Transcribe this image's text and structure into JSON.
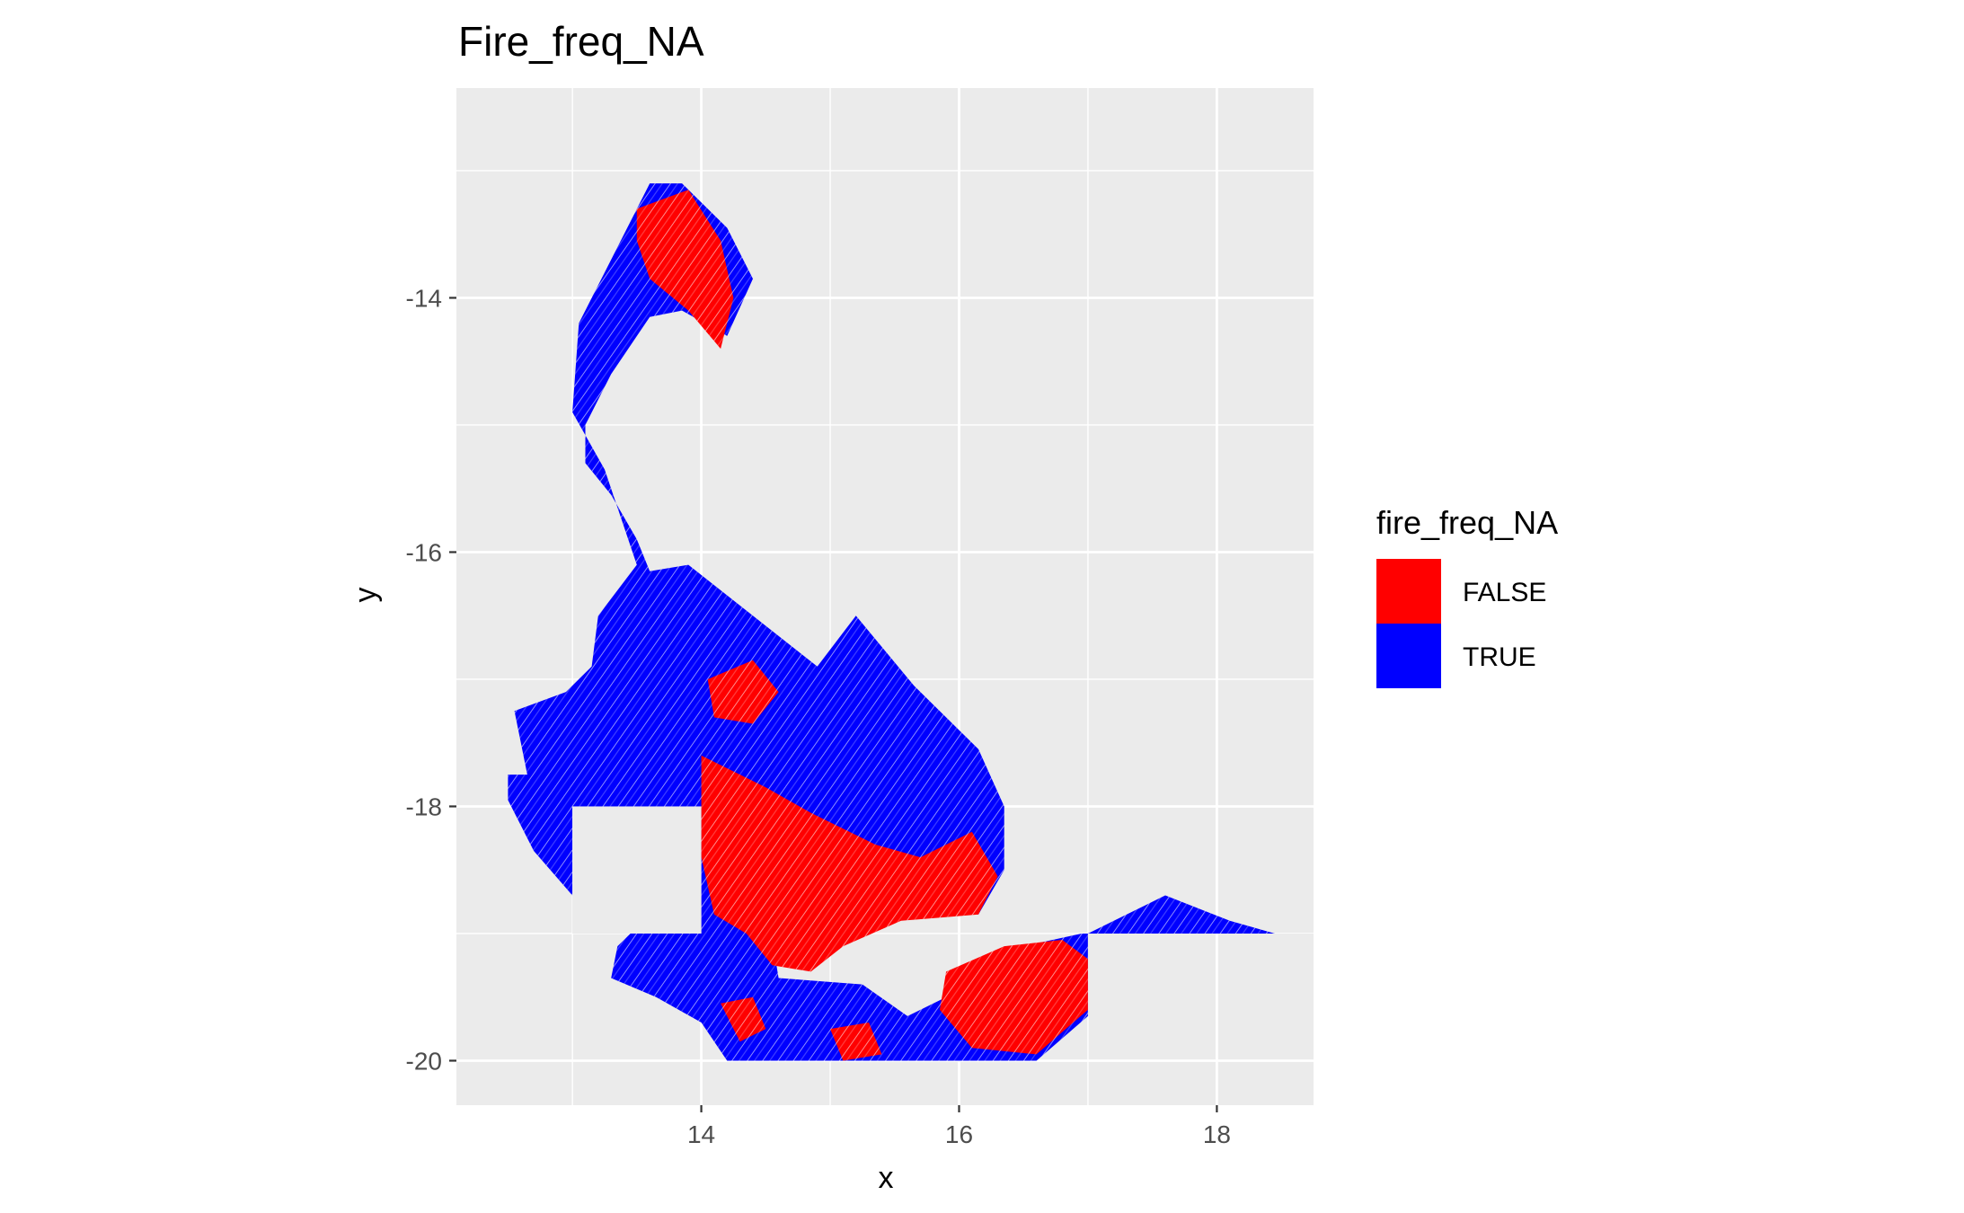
{
  "chart_data": {
    "type": "heatmap",
    "title": "Fire_freq_NA",
    "xlabel": "x",
    "ylabel": "y",
    "xlim": [
      12.1,
      18.75
    ],
    "ylim": [
      -20.35,
      -12.35
    ],
    "x_ticks": [
      14,
      16,
      18
    ],
    "y_ticks": [
      -14,
      -16,
      -18,
      -20
    ],
    "x_tick_labels": [
      "14",
      "16",
      "18"
    ],
    "y_tick_labels": [
      "-14",
      "-16",
      "-18",
      "-20"
    ],
    "grid": true,
    "legend": {
      "title": "fire_freq_NA",
      "position": "right",
      "entries": [
        {
          "label": "FALSE",
          "color": "#ff0000"
        },
        {
          "label": "TRUE",
          "color": "#0000ff"
        }
      ]
    },
    "colors": {
      "FALSE": "#ff0000",
      "TRUE": "#0000ff",
      "panel": "#ebebeb",
      "grid": "#ffffff"
    },
    "regions": [
      {
        "value": "TRUE",
        "polygon": [
          [
            13.6,
            -13.1
          ],
          [
            13.85,
            -13.1
          ],
          [
            14.2,
            -13.45
          ],
          [
            14.4,
            -13.85
          ],
          [
            14.2,
            -14.3
          ],
          [
            13.85,
            -14.1
          ],
          [
            13.6,
            -14.15
          ],
          [
            13.3,
            -14.6
          ],
          [
            13.1,
            -15.0
          ],
          [
            13.1,
            -15.3
          ],
          [
            13.3,
            -15.55
          ],
          [
            13.5,
            -15.9
          ],
          [
            13.6,
            -16.15
          ],
          [
            13.9,
            -16.1
          ],
          [
            14.4,
            -16.5
          ],
          [
            14.9,
            -16.9
          ],
          [
            15.2,
            -16.5
          ],
          [
            15.65,
            -17.05
          ],
          [
            16.15,
            -17.55
          ],
          [
            16.35,
            -18.0
          ],
          [
            16.35,
            -18.5
          ],
          [
            16.15,
            -18.85
          ],
          [
            15.5,
            -18.7
          ],
          [
            14.95,
            -18.7
          ],
          [
            14.55,
            -19.05
          ],
          [
            14.6,
            -19.35
          ],
          [
            15.25,
            -19.4
          ],
          [
            15.6,
            -19.65
          ],
          [
            16.0,
            -19.45
          ],
          [
            16.5,
            -19.1
          ],
          [
            16.95,
            -19.0
          ],
          [
            17.0,
            -19.0
          ],
          [
            17.6,
            -18.7
          ],
          [
            18.1,
            -18.9
          ],
          [
            18.45,
            -19.0
          ],
          [
            17.0,
            -19.0
          ],
          [
            17.0,
            -19.65
          ],
          [
            16.6,
            -20.0
          ],
          [
            14.2,
            -20.0
          ],
          [
            14.0,
            -19.7
          ],
          [
            13.65,
            -19.5
          ],
          [
            13.3,
            -19.35
          ],
          [
            13.35,
            -19.1
          ],
          [
            13.45,
            -19.0
          ],
          [
            14.0,
            -19.0
          ],
          [
            14.0,
            -18.0
          ],
          [
            13.0,
            -18.0
          ],
          [
            13.0,
            -18.7
          ],
          [
            12.7,
            -18.35
          ],
          [
            12.5,
            -17.95
          ],
          [
            12.5,
            -17.75
          ],
          [
            12.65,
            -17.75
          ],
          [
            12.55,
            -17.25
          ],
          [
            12.95,
            -17.1
          ],
          [
            13.15,
            -16.9
          ],
          [
            13.2,
            -16.5
          ],
          [
            13.5,
            -16.1
          ],
          [
            13.25,
            -15.35
          ],
          [
            13.0,
            -14.9
          ],
          [
            13.05,
            -14.2
          ],
          [
            13.3,
            -13.7
          ],
          [
            13.45,
            -13.4
          ]
        ]
      },
      {
        "value": "FALSE",
        "polygon": [
          [
            13.5,
            -13.3
          ],
          [
            13.9,
            -13.15
          ],
          [
            14.15,
            -13.55
          ],
          [
            14.25,
            -14.0
          ],
          [
            14.15,
            -14.4
          ],
          [
            13.9,
            -14.1
          ],
          [
            13.6,
            -13.85
          ],
          [
            13.5,
            -13.55
          ]
        ]
      },
      {
        "value": "FALSE",
        "polygon": [
          [
            14.0,
            -17.6
          ],
          [
            14.5,
            -17.85
          ],
          [
            14.85,
            -18.05
          ],
          [
            15.35,
            -18.3
          ],
          [
            15.7,
            -18.4
          ],
          [
            16.1,
            -18.2
          ],
          [
            16.3,
            -18.55
          ],
          [
            16.15,
            -18.85
          ],
          [
            15.55,
            -18.9
          ],
          [
            15.1,
            -19.1
          ],
          [
            14.85,
            -19.3
          ],
          [
            14.55,
            -19.25
          ],
          [
            14.35,
            -19.0
          ],
          [
            14.1,
            -18.85
          ],
          [
            14.0,
            -18.4
          ]
        ]
      },
      {
        "value": "FALSE",
        "polygon": [
          [
            15.9,
            -19.3
          ],
          [
            16.35,
            -19.1
          ],
          [
            16.8,
            -19.05
          ],
          [
            17.0,
            -19.2
          ],
          [
            17.0,
            -19.6
          ],
          [
            16.6,
            -19.95
          ],
          [
            16.1,
            -19.9
          ],
          [
            15.85,
            -19.6
          ]
        ]
      },
      {
        "value": "FALSE",
        "polygon": [
          [
            14.05,
            -17.0
          ],
          [
            14.4,
            -16.85
          ],
          [
            14.6,
            -17.1
          ],
          [
            14.4,
            -17.35
          ],
          [
            14.1,
            -17.3
          ]
        ]
      },
      {
        "value": "FALSE",
        "polygon": [
          [
            15.0,
            -19.75
          ],
          [
            15.3,
            -19.7
          ],
          [
            15.4,
            -19.95
          ],
          [
            15.1,
            -20.0
          ]
        ]
      },
      {
        "value": "FALSE",
        "polygon": [
          [
            14.15,
            -19.55
          ],
          [
            14.4,
            -19.5
          ],
          [
            14.5,
            -19.75
          ],
          [
            14.3,
            -19.85
          ]
        ]
      }
    ],
    "blank_blocks": [
      {
        "x": [
          13.0,
          14.0
        ],
        "y": [
          -19.0,
          -18.0
        ]
      },
      {
        "x": [
          17.0,
          18.75
        ],
        "y": [
          -19.65,
          -19.0
        ]
      }
    ]
  }
}
